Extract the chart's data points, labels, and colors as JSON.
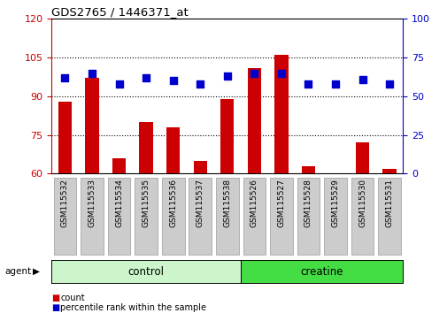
{
  "title": "GDS2765 / 1446371_at",
  "samples": [
    "GSM115532",
    "GSM115533",
    "GSM115534",
    "GSM115535",
    "GSM115536",
    "GSM115537",
    "GSM115538",
    "GSM115526",
    "GSM115527",
    "GSM115528",
    "GSM115529",
    "GSM115530",
    "GSM115531"
  ],
  "count_values": [
    88,
    97,
    66,
    80,
    78,
    65,
    89,
    101,
    106,
    63,
    60,
    72,
    62
  ],
  "percentile_values": [
    62,
    65,
    58,
    62,
    60,
    58,
    63,
    65,
    65,
    58,
    58,
    61,
    58
  ],
  "ylim_left": [
    60,
    120
  ],
  "ylim_right": [
    0,
    100
  ],
  "yticks_left": [
    60,
    75,
    90,
    105,
    120
  ],
  "yticks_right": [
    0,
    25,
    50,
    75,
    100
  ],
  "n_control": 7,
  "n_creatine": 6,
  "control_color_light": "#ccf5cc",
  "creatine_color": "#44dd44",
  "bar_color": "#cc0000",
  "dot_color": "#0000cc",
  "dot_size": 30,
  "bg_color": "#ffffff",
  "left_axis_color": "#cc0000",
  "right_axis_color": "#0000cc",
  "agent_label": "agent",
  "control_label": "control",
  "creatine_label": "creatine",
  "legend_count": "count",
  "legend_percentile": "percentile rank within the sample",
  "ticklabel_bg": "#cccccc",
  "gridline_ticks": [
    75,
    90,
    105
  ]
}
